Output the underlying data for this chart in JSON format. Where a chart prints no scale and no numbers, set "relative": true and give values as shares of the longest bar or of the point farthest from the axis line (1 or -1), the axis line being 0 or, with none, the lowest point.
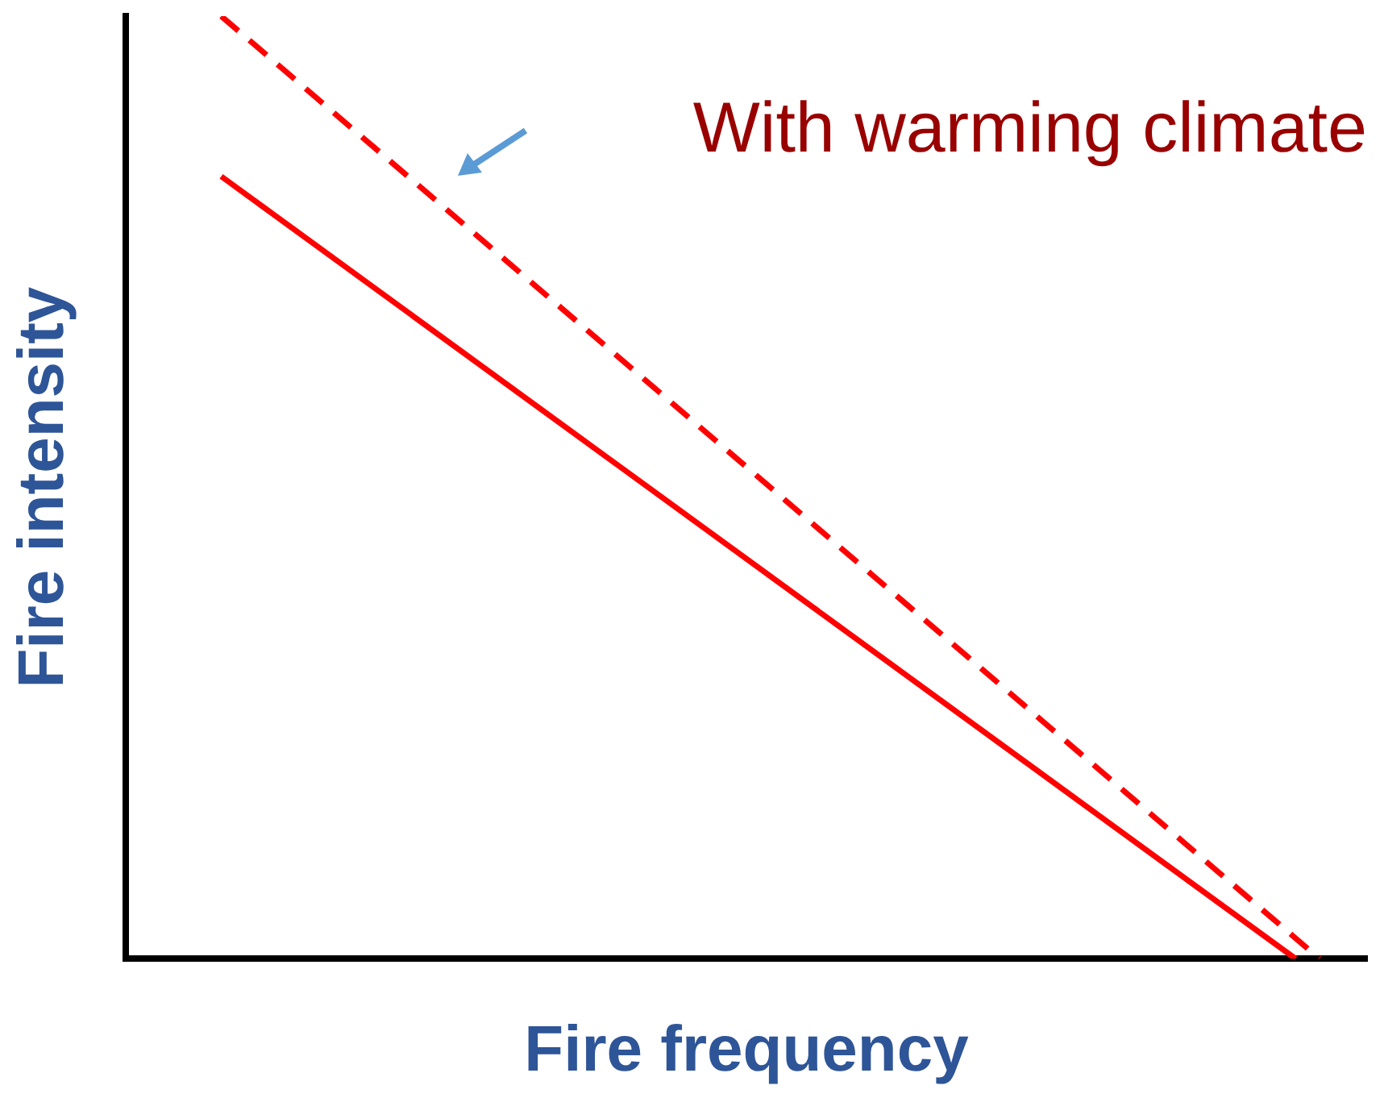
{
  "chart_data": {
    "type": "line",
    "relative": true,
    "xlabel": "Fire frequency",
    "ylabel": "Fire intensity",
    "legend": false,
    "grid": false,
    "marker": "none",
    "categories": [
      null,
      null,
      null,
      null,
      null,
      null,
      null,
      null,
      null,
      null,
      null,
      null,
      null,
      null,
      null,
      null,
      null,
      null,
      null,
      null,
      null,
      null,
      null,
      null,
      null,
      null,
      null,
      null,
      null,
      null,
      null,
      null,
      null,
      null,
      null,
      null,
      null,
      null,
      null,
      null,
      null,
      null,
      null,
      null,
      null,
      null,
      null,
      null,
      null,
      null,
      null,
      null,
      null
    ],
    "series": [
      {
        "color": "#ff0000",
        "line_style": "solid",
        "values": [
          null,
          null,
          null,
          null,
          0.83,
          null,
          null,
          null,
          null,
          null,
          null,
          null,
          null,
          null,
          null,
          null,
          null,
          null,
          null,
          null,
          null,
          null,
          null,
          null,
          null,
          null,
          null,
          null,
          null,
          null,
          null,
          null,
          null,
          null,
          null,
          null,
          null,
          null,
          null,
          null,
          null,
          null,
          null,
          null,
          null,
          null,
          null,
          null,
          null,
          0,
          null,
          null,
          null
        ]
      },
      {
        "color": "#ff0000",
        "line_style": "dashed",
        "values": [
          null,
          null,
          null,
          null,
          1,
          null,
          null,
          null,
          null,
          null,
          null,
          null,
          null,
          null,
          null,
          null,
          null,
          null,
          null,
          null,
          null,
          null,
          null,
          null,
          null,
          null,
          null,
          null,
          null,
          null,
          null,
          null,
          null,
          null,
          null,
          null,
          null,
          null,
          null,
          null,
          null,
          null,
          null,
          null,
          null,
          null,
          null,
          null,
          null,
          null,
          0,
          null,
          null
        ]
      }
    ],
    "annotations": [
      "With warming climate"
    ]
  }
}
